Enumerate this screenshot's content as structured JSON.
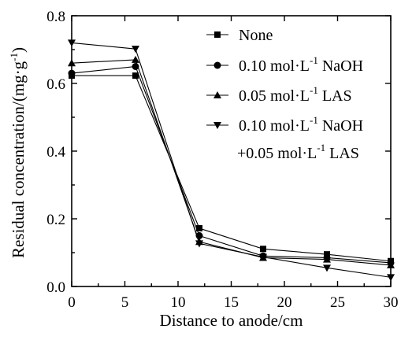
{
  "chart_data": {
    "type": "line",
    "xlabel": "Distance to anode/cm",
    "ylabel": "Residual concentration/(mg·g",
    "ylabel_sup": "-1",
    "ylabel_suffix": ")",
    "xlim": [
      0,
      30
    ],
    "ylim": [
      0.0,
      0.8
    ],
    "xticks": [
      0,
      5,
      10,
      15,
      20,
      25,
      30
    ],
    "yticks": [
      0.0,
      0.2,
      0.4,
      0.6,
      0.8
    ],
    "ytick_labels": [
      "0.0",
      "0.2",
      "0.4",
      "0.6",
      "0.8"
    ],
    "legend_position": "top-right",
    "grid": false,
    "series": [
      {
        "marker": "square",
        "legend": [
          {
            "text": "None",
            "sup": "",
            "after": ""
          }
        ],
        "x": [
          0,
          6,
          12,
          18,
          24,
          30
        ],
        "y": [
          0.623,
          0.623,
          0.172,
          0.111,
          0.095,
          0.075
        ]
      },
      {
        "marker": "circle",
        "legend": [
          {
            "text": "0.10 mol·L",
            "sup": "-1",
            "after": " NaOH"
          }
        ],
        "x": [
          0,
          6,
          12,
          18,
          24,
          30
        ],
        "y": [
          0.63,
          0.65,
          0.15,
          0.09,
          0.085,
          0.07
        ]
      },
      {
        "marker": "triangle-up",
        "legend": [
          {
            "text": "0.05 mol·L",
            "sup": "-1",
            "after": " LAS"
          }
        ],
        "x": [
          0,
          6,
          12,
          18,
          24,
          30
        ],
        "y": [
          0.66,
          0.67,
          0.132,
          0.085,
          0.08,
          0.063
        ]
      },
      {
        "marker": "triangle-down",
        "legend": [
          {
            "text": "0.10 mol·L",
            "sup": "-1",
            "after": " NaOH"
          },
          {
            "text": "+0.05 mol·L",
            "sup": "-1",
            "after": " LAS"
          }
        ],
        "x": [
          0,
          6,
          12,
          18,
          24,
          30
        ],
        "y": [
          0.72,
          0.702,
          0.127,
          0.087,
          0.055,
          0.027
        ]
      }
    ]
  }
}
